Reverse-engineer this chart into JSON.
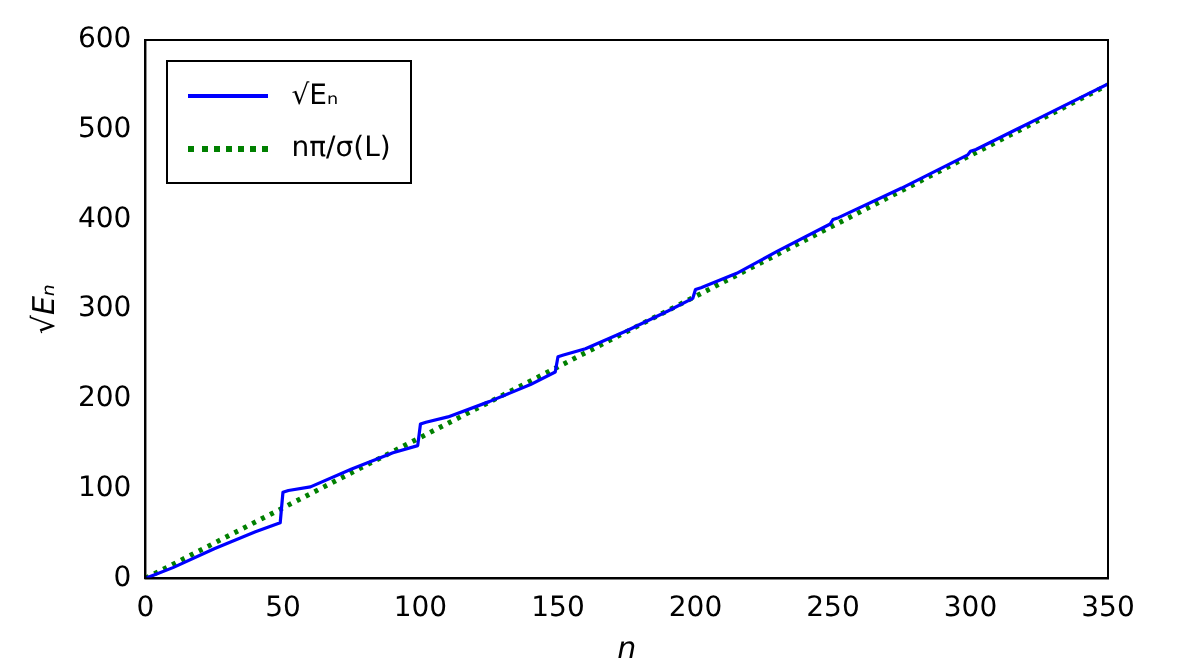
{
  "chart_data": {
    "type": "line",
    "xlabel": "n",
    "ylabel": "√Eₙ",
    "xlim": [
      0,
      350
    ],
    "ylim": [
      0,
      600
    ],
    "xticks": [
      0,
      50,
      100,
      150,
      200,
      250,
      300,
      350
    ],
    "yticks": [
      0,
      100,
      200,
      300,
      400,
      500,
      600
    ],
    "grid": false,
    "legend": "top left",
    "marker": "none",
    "series": [
      {
        "name": "√Eₙ",
        "color": "#0000ff",
        "line_style": "solid",
        "x": [
          0,
          10,
          25,
          40,
          49,
          50,
          52,
          60,
          75,
          90,
          99,
          100,
          102,
          110,
          125,
          140,
          149,
          150,
          152,
          160,
          175,
          190,
          199,
          200,
          202,
          215,
          230,
          249,
          250,
          252,
          275,
          299,
          300,
          302,
          325,
          350
        ],
        "values": [
          0,
          12,
          33,
          52,
          62,
          96,
          98,
          102,
          122,
          140,
          148,
          172,
          174,
          180,
          197,
          216,
          230,
          247,
          249,
          256,
          276,
          298,
          312,
          322,
          324,
          340,
          365,
          395,
          400,
          402,
          435,
          472,
          476,
          478,
          513,
          551
        ]
      },
      {
        "name": "nπ/σ(L)",
        "color": "#008000",
        "line_style": "dotted",
        "x": [
          0,
          350
        ],
        "values": [
          0,
          550
        ]
      }
    ]
  }
}
